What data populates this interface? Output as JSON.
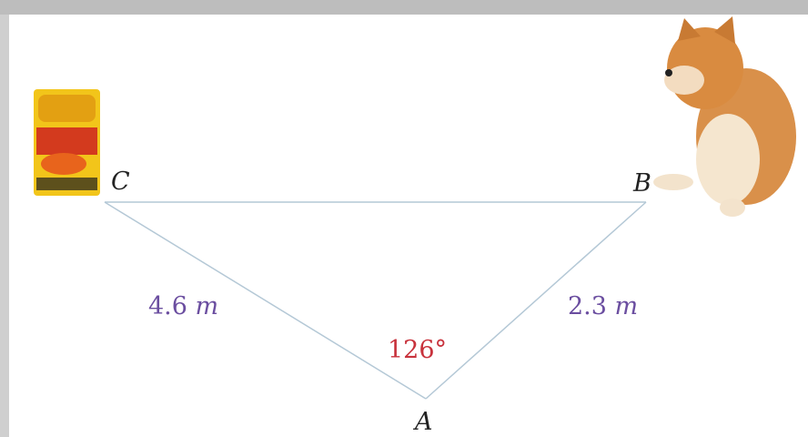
{
  "points": {
    "c": "C",
    "b": "B",
    "a": "A"
  },
  "sides": {
    "ca": {
      "value": "4.6",
      "unit": "m"
    },
    "ab": {
      "value": "2.3",
      "unit": "m"
    }
  },
  "angle": "126°"
}
